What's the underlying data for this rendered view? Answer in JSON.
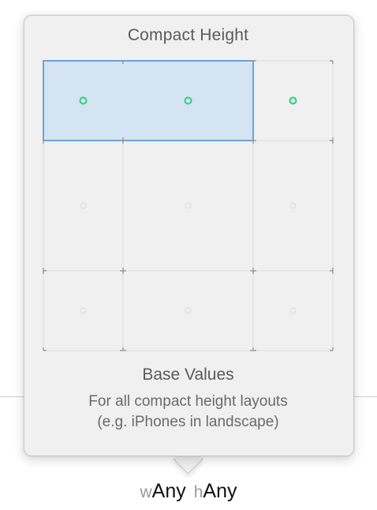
{
  "popover": {
    "title": "Compact Height",
    "section_heading": "Base Values",
    "description_line1": "For all compact height layouts",
    "description_line2": "(e.g. iPhones in landscape)"
  },
  "size_class": {
    "width_prefix": "w",
    "width_value": "Any",
    "height_prefix": "h",
    "height_value": "Any"
  },
  "grid": {
    "rows": 3,
    "columns": 3,
    "selected_row": 0,
    "selected_columns": [
      0,
      1
    ],
    "colors": {
      "selection_fill": "#d4e4f2",
      "selection_border": "#3a8ee0",
      "active_dot": "#39c88a",
      "inactive_dot": "#dcdcdc",
      "grid_line": "#dddddd",
      "tick": "#8a8a8a"
    }
  }
}
